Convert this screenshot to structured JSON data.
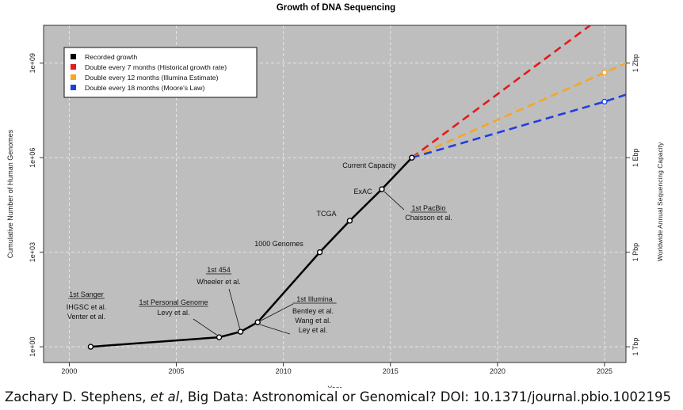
{
  "chart_data": {
    "type": "line",
    "title": "Growth of DNA Sequencing",
    "xlabel": "Year",
    "ylabel": "Cumulative Number of Human Genomes",
    "y2label": "Worldwide Annual Sequencing Capacity",
    "xlim": [
      1998.8,
      2026
    ],
    "ylim_log10": [
      -0.5,
      10.2
    ],
    "y_scale": "log",
    "grid": true,
    "legend_position": "top-left",
    "x_ticks": [
      "2000",
      "2005",
      "2010",
      "2015",
      "2020",
      "2025"
    ],
    "y_ticks": [
      "1e+00",
      "1e+03",
      "1e+06",
      "1e+09"
    ],
    "y2_ticks": [
      "1 Tbp",
      "1 Pbp",
      "1 Ebp",
      "1 Zbp"
    ],
    "series": [
      {
        "name": "Recorded growth",
        "color": "#000000",
        "x": [
          2001,
          2007,
          2008,
          2008.8,
          2011.7,
          2013.1,
          2014.6,
          2016
        ],
        "y": [
          1,
          2,
          3,
          6,
          1000,
          10000,
          100000,
          1000000
        ]
      },
      {
        "name": "Double every 7 months (Historical growth rate)",
        "color": "#e41a1c",
        "x": [
          2016,
          2026
        ],
        "y": [
          1000000,
          110000000000.0
        ]
      },
      {
        "name": "Double every 12 months (Illumina Estimate)",
        "color": "#f5a623",
        "x": [
          2016,
          2025,
          2026
        ],
        "y": [
          1000000,
          500000000,
          1000000000
        ]
      },
      {
        "name": "Double every 18 months (Moore's Law)",
        "color": "#1f3fe0",
        "x": [
          2016,
          2025,
          2026
        ],
        "y": [
          1000000,
          60000000,
          100000000
        ]
      }
    ],
    "annotations": [
      {
        "label": "1st Sanger",
        "sub": "IHGSC et al.\nVenter et al.",
        "x": 2001,
        "y": 1
      },
      {
        "label": "1st Personal Genome",
        "sub": "Levy et al.",
        "x": 2007,
        "y": 2
      },
      {
        "label": "1st 454",
        "sub": "Wheeler et al.",
        "x": 2008,
        "y": 3
      },
      {
        "label": "1st Illumina",
        "sub": "Bentley et al.\nWang et al.\nLey et al.",
        "x": 2008.8,
        "y": 6
      },
      {
        "label": "1000 Genomes",
        "sub": "",
        "x": 2011.7,
        "y": 1000
      },
      {
        "label": "TCGA",
        "sub": "",
        "x": 2013.1,
        "y": 10000
      },
      {
        "label": "ExAC",
        "sub": "",
        "x": 2014.6,
        "y": 100000
      },
      {
        "label": "1st PacBio",
        "sub": "Chaisson et al.",
        "x": 2014.6,
        "y": 100000
      },
      {
        "label": "Current Capacity",
        "sub": "",
        "x": 2016,
        "y": 1000000
      }
    ]
  },
  "caption": {
    "author": "Zachary D. Stephens,",
    "etal": "et al",
    "rest": ", Big Data: Astronomical or Genomical? DOI: 10.1371/journal.pbio.1002195"
  }
}
